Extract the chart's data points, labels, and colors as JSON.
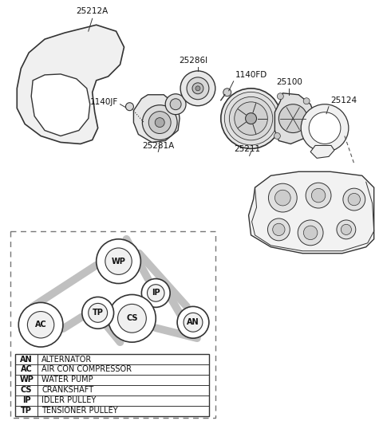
{
  "bg_color": "#ffffff",
  "line_color": "#555555",
  "dark_line": "#333333",
  "legend_entries": [
    [
      "AN",
      "ALTERNATOR"
    ],
    [
      "AC",
      "AIR CON COMPRESSOR"
    ],
    [
      "WP",
      "WATER PUMP"
    ],
    [
      "CS",
      "CRANKSHAFT"
    ],
    [
      "IP",
      "IDLER PULLEY"
    ],
    [
      "TP",
      "TENSIONER PULLEY"
    ]
  ]
}
